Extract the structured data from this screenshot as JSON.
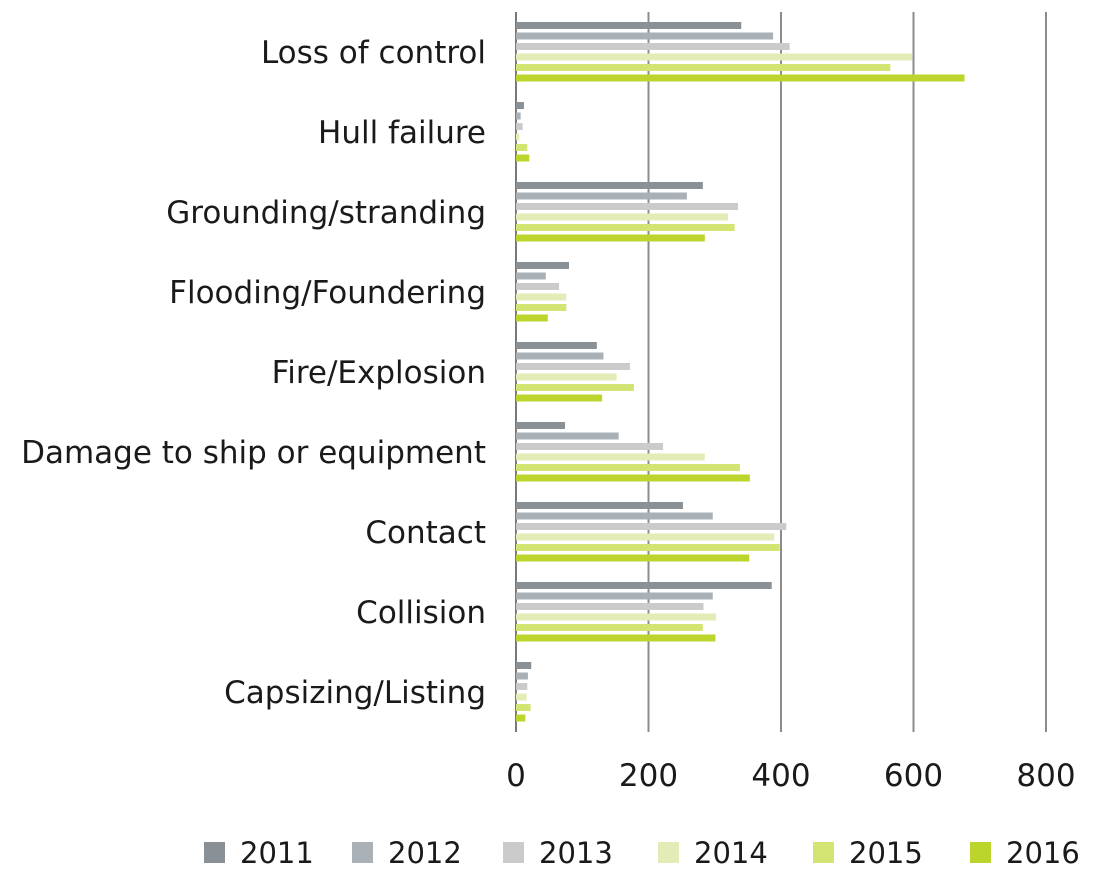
{
  "chart_data": {
    "type": "bar",
    "orientation": "horizontal",
    "title": "",
    "xlabel": "",
    "ylabel": "",
    "xlim": [
      0,
      800
    ],
    "xticks": [
      0,
      200,
      400,
      600,
      800
    ],
    "xtick_labels": [
      "0",
      "200",
      "400",
      "600",
      "800"
    ],
    "grid": "vertical",
    "legend_position": "bottom",
    "categories": [
      "Loss of control",
      "Hull failure",
      "Grounding/stranding",
      "Flooding/Foundering",
      "Fire/Explosion",
      "Damage to ship or equipment",
      "Contact",
      "Collision",
      "Capsizing/Listing"
    ],
    "series": [
      {
        "name": "2011",
        "color": "#8a9196",
        "values": [
          340,
          12,
          282,
          80,
          122,
          74,
          252,
          386,
          23
        ]
      },
      {
        "name": "2012",
        "color": "#aab1b6",
        "values": [
          388,
          7,
          258,
          45,
          132,
          155,
          297,
          297,
          18
        ]
      },
      {
        "name": "2013",
        "color": "#cbcbcb",
        "values": [
          413,
          10,
          335,
          65,
          172,
          222,
          408,
          283,
          17
        ]
      },
      {
        "name": "2014",
        "color": "#e3ecb7",
        "values": [
          598,
          5,
          320,
          76,
          152,
          285,
          390,
          302,
          16
        ]
      },
      {
        "name": "2015",
        "color": "#d4e473",
        "values": [
          565,
          17,
          330,
          76,
          178,
          338,
          398,
          282,
          22
        ]
      },
      {
        "name": "2016",
        "color": "#bdd42c",
        "values": [
          677,
          20,
          285,
          48,
          130,
          353,
          352,
          301,
          14
        ]
      }
    ]
  }
}
